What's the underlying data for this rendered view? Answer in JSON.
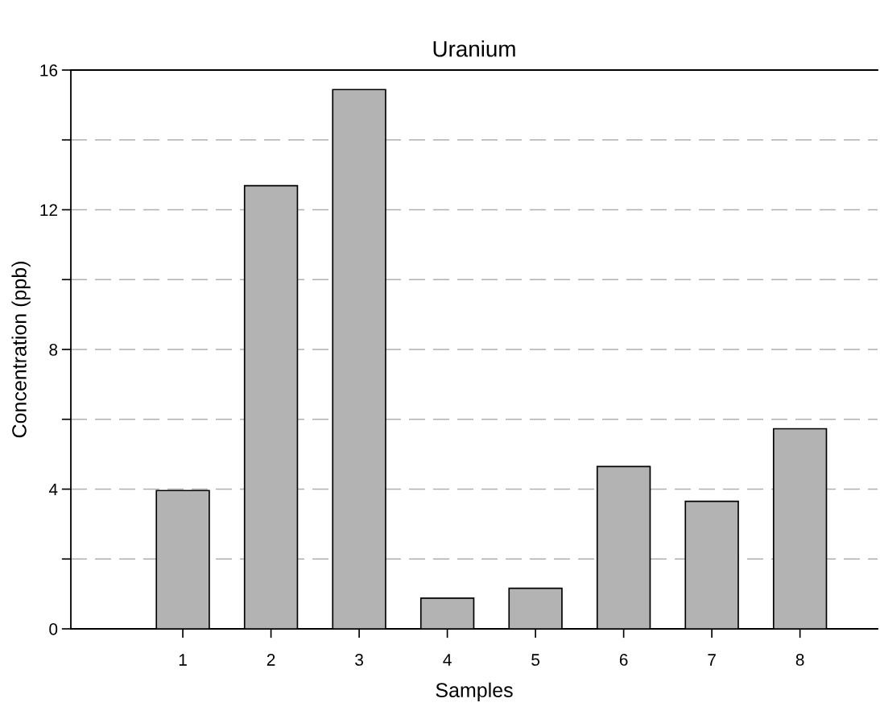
{
  "chart_data": {
    "type": "bar",
    "title": "Uranium",
    "xlabel": "Samples",
    "ylabel": "Concentration (ppb)",
    "categories": [
      "1",
      "2",
      "3",
      "4",
      "5",
      "6",
      "7",
      "8"
    ],
    "values": [
      3.96,
      12.69,
      15.44,
      0.88,
      1.16,
      4.65,
      3.65,
      5.73
    ],
    "color": "#b3b3b3",
    "ylim": [
      0,
      16
    ],
    "yticks": [
      0,
      {
        "value": 2,
        "label": null
      },
      4,
      {
        "value": 6,
        "label": null
      },
      8,
      {
        "value": 10,
        "label": null
      },
      12,
      {
        "value": 14,
        "label": null
      },
      16
    ],
    "grid": "y",
    "legend": false
  }
}
